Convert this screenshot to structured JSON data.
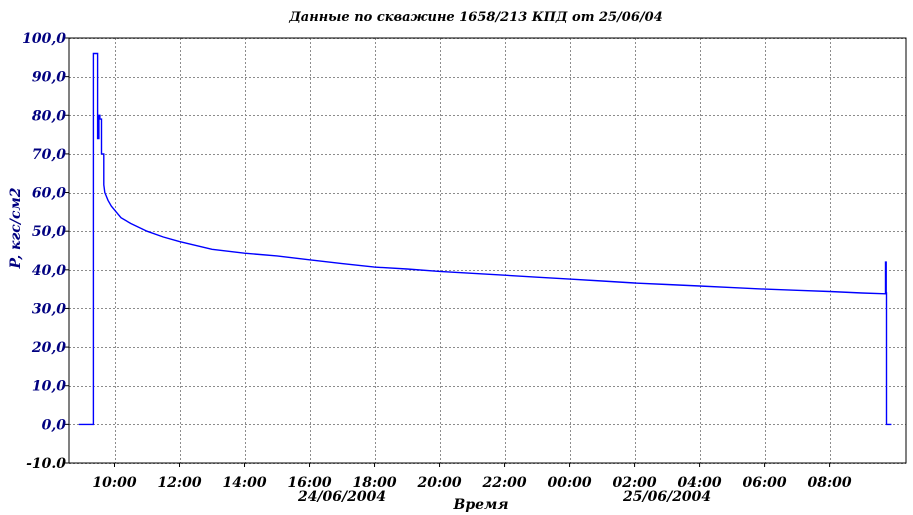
{
  "chart_data": {
    "type": "line",
    "title": "Данные по скважине 1658/213 КПД от 25/06/04",
    "xlabel": "Время",
    "ylabel": "P, кгс/см2",
    "x_unit": "hours since 00:00 24/06/2004",
    "xlim": [
      8.6,
      34.35
    ],
    "ylim": [
      -10,
      100
    ],
    "y_ticks": [
      100,
      90,
      80,
      70,
      60,
      50,
      40,
      30,
      20,
      10,
      0,
      -10
    ],
    "y_tick_labels": [
      "100,0",
      "90,0",
      "80,0",
      "70,0",
      "60,0",
      "50,0",
      "40,0",
      "30,0",
      "20,0",
      "10,0",
      "0,0",
      "-10.0"
    ],
    "x_ticks": [
      10,
      12,
      14,
      16,
      18,
      20,
      22,
      24,
      26,
      28,
      30,
      32
    ],
    "x_tick_labels": [
      "10:00",
      "12:00",
      "14:00",
      "16:00",
      "18:00",
      "20:00",
      "22:00",
      "00:00",
      "02:00",
      "04:00",
      "06:00",
      "08:00"
    ],
    "date_labels": [
      {
        "text": "24/06/2004",
        "x": 17
      },
      {
        "text": "25/06/2004",
        "x": 27
      }
    ],
    "grid": true,
    "legend": "none",
    "series": [
      {
        "color": "#0000ff",
        "x": [
          8.9,
          9.35,
          9.35,
          9.36,
          9.48,
          9.48,
          9.52,
          9.52,
          9.55,
          9.55,
          9.6,
          9.6,
          9.67,
          9.67,
          9.7,
          9.75,
          9.8,
          9.9,
          10.0,
          10.2,
          10.5,
          11.0,
          11.5,
          12.0,
          13.0,
          14.0,
          15.0,
          16.0,
          17.0,
          18.0,
          19.0,
          20.0,
          21.0,
          22.0,
          23.0,
          24.0,
          25.0,
          26.0,
          27.0,
          28.0,
          29.0,
          30.0,
          31.0,
          32.0,
          33.0,
          33.72,
          33.72,
          33.74,
          33.74,
          33.75,
          33.75,
          33.9
        ],
        "y": [
          0,
          0,
          96,
          96,
          96,
          74,
          74,
          80,
          80,
          79,
          79,
          70,
          70,
          62,
          60,
          59,
          58,
          56.5,
          55.5,
          53.5,
          52,
          50,
          48.5,
          47.3,
          45.3,
          44.3,
          43.6,
          42.6,
          41.6,
          40.7,
          40.2,
          39.6,
          39.1,
          38.6,
          38.1,
          37.6,
          37.1,
          36.6,
          36.2,
          35.8,
          35.4,
          35.0,
          34.7,
          34.4,
          34.0,
          33.8,
          42,
          42,
          34,
          34,
          0,
          0
        ]
      }
    ]
  }
}
